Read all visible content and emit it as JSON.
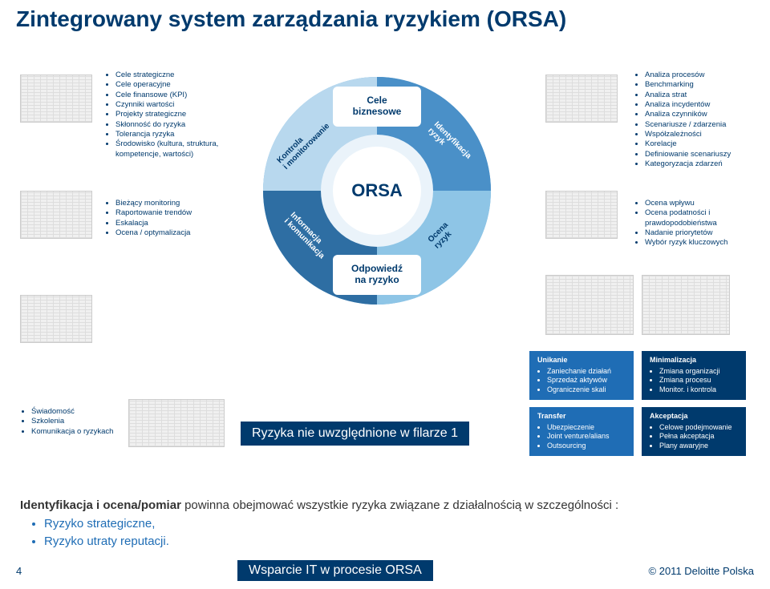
{
  "title": "Zintegrowany system zarządzania ryzykiem (ORSA)",
  "boxes": {
    "topLeft": [
      "Cele strategiczne",
      "Cele operacyjne",
      "Cele finansowe (KPI)",
      "Czynniki wartości",
      "Projekty strategiczne",
      "Skłonność do ryzyka",
      "Tolerancja ryzyka",
      "Środowisko (kultura, struktura, kompetencje, wartości)"
    ],
    "topRight": [
      "Analiza procesów",
      "Benchmarking",
      "Analiza strat",
      "Analiza incydentów",
      "Analiza czynników",
      "Scenariusze / zdarzenia",
      "Współzależności",
      "Korelacje",
      "Definiowanie scenariuszy",
      "Kategoryzacja zdarzeń"
    ],
    "midLeft": [
      "Bieżący monitoring",
      "Raportowanie trendów",
      "Eskalacja",
      "Ocena / optymalizacja"
    ],
    "midRight": [
      "Ocena wpływu",
      "Ocena podatności i prawdopodobieństwa",
      "Nadanie priorytetów",
      "Wybór ryzyk kluczowych"
    ],
    "botLeft": [
      "Świadomość",
      "Szkolenia",
      "Komunikacja o ryzykach"
    ]
  },
  "donut": {
    "center": "ORSA",
    "top": "Cele\nbiznesowe",
    "bottom": "Odpowiedź\nna ryzyko",
    "segments": {
      "tl": "Kontrola\ni monitorowanie",
      "tr": "Identyfikacja\nryzyk",
      "bl": "Informacja\ni komunikacja",
      "br": "Ocena\nryzyk"
    },
    "colors": {
      "outer": "#6bb1e0",
      "tl": "#b8d8ee",
      "tr": "#4a90c8",
      "bl": "#2e6ea3",
      "br": "#8ec5e6",
      "inner": "#ffffff",
      "centerRing": "#eaf3fa"
    }
  },
  "riskBoxes": {
    "unikanie": {
      "hdr": "Unikanie",
      "items": [
        "Zaniechanie działań",
        "Sprzedaż aktywów",
        "Ograniczenie skali"
      ]
    },
    "minim": {
      "hdr": "Minimalizacja",
      "items": [
        "Zmiana organizacji",
        "Zmiana procesu",
        "Monitor. i kontrola"
      ]
    },
    "transfer": {
      "hdr": "Transfer",
      "items": [
        "Ubezpieczenie",
        "Joint venture/alians",
        "Outsourcing"
      ]
    },
    "akcept": {
      "hdr": "Akceptacja",
      "items": [
        "Celowe podejmowanie",
        "Pełna akceptacja",
        "Plany awaryjne"
      ]
    }
  },
  "filar": "Ryzyka nie uwzględnione w filarze 1",
  "bottomText": {
    "lead": "Identyfikacja i ocena/pomiar",
    "rest": " powinna obejmować wszystkie ryzyka związane z działalnością w szczególności :",
    "items": [
      "Ryzyko strategiczne,",
      "Ryzyko utraty reputacji."
    ]
  },
  "footer": {
    "page": "4",
    "mid": "Wsparcie IT w procesie ORSA",
    "right": "© 2011 Deloitte Polska"
  }
}
